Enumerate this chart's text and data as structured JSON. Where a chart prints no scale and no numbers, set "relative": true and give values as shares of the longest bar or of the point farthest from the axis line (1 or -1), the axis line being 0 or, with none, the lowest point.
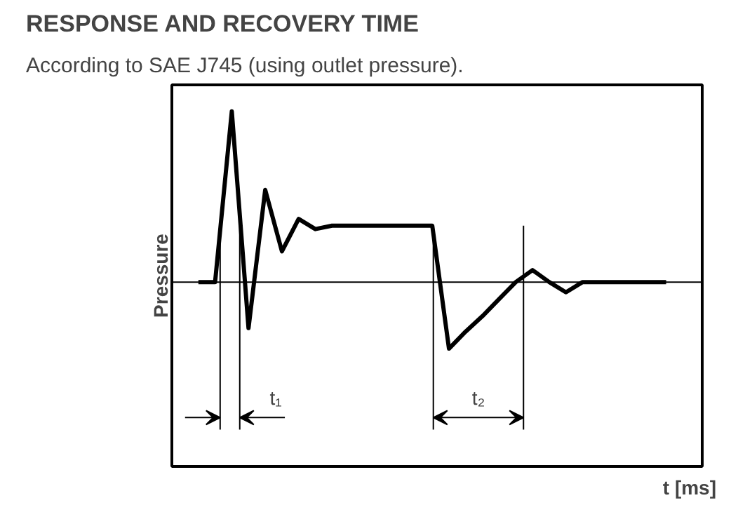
{
  "chart_data": {
    "type": "line",
    "title": "RESPONSE AND RECOVERY TIME",
    "subtitle": "According to SAE J745 (using outlet pressure).",
    "ylabel": "Pressure",
    "relative": true,
    "line_style": "solid",
    "categories": [
      null,
      null,
      null,
      null,
      null,
      null,
      null,
      null,
      null,
      null,
      null,
      null,
      null,
      null,
      null,
      null,
      null,
      null,
      null,
      null,
      null,
      null,
      null,
      null,
      null,
      null,
      null,
      null,
      null
    ],
    "series": [
      {
        "color": "#000000",
        "values": [
          0,
          0,
          1.0,
          -0.27,
          0.54,
          0.18,
          0.37,
          0.31,
          0.33,
          0.33,
          0.33,
          0.33,
          0.33,
          0.33,
          0.33,
          -0.39,
          -0.29,
          -0.2,
          -0.1,
          0,
          0.07,
          0,
          -0.06,
          0,
          0,
          0,
          0,
          0,
          0
        ]
      }
    ],
    "annotations": [
      "t₁",
      "t₂",
      "t [ms]"
    ]
  }
}
